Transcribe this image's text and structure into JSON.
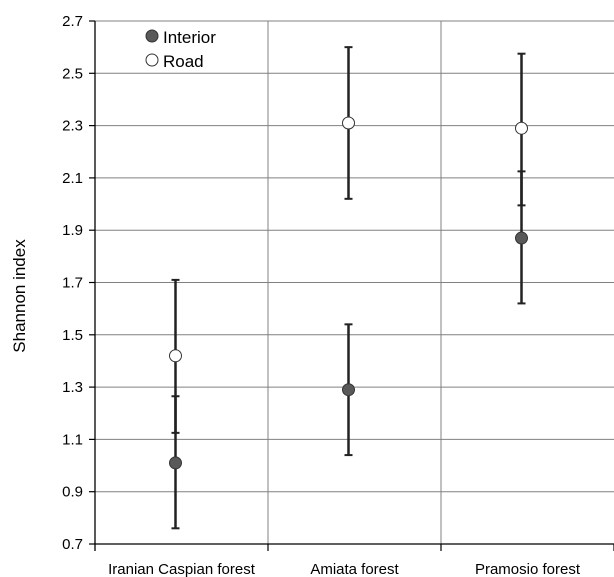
{
  "chart_data": {
    "type": "scatter",
    "ylabel": "Shannon index",
    "xlabel": "",
    "title": "",
    "ylim": [
      0.7,
      2.7
    ],
    "yticks": [
      "0.7",
      "0.9",
      "1.1",
      "1.3",
      "1.5",
      "1.7",
      "1.9",
      "2.1",
      "2.3",
      "2.5",
      "2.7"
    ],
    "categories": [
      "Iranian Caspian forest",
      "Amiata forest",
      "Pramosio forest"
    ],
    "grid": true,
    "legend_position": "top-left",
    "series": [
      {
        "name": "Interior",
        "marker_color": "#595959",
        "values": [
          1.01,
          1.29,
          1.87
        ],
        "error_low": [
          0.76,
          1.04,
          1.62
        ],
        "error_high": [
          1.265,
          1.54,
          2.125
        ]
      },
      {
        "name": "Road",
        "marker_color": "#ffffff",
        "values": [
          1.42,
          2.31,
          2.29
        ],
        "error_low": [
          1.125,
          2.02,
          1.995
        ],
        "error_high": [
          1.71,
          2.6,
          2.575
        ]
      }
    ]
  }
}
